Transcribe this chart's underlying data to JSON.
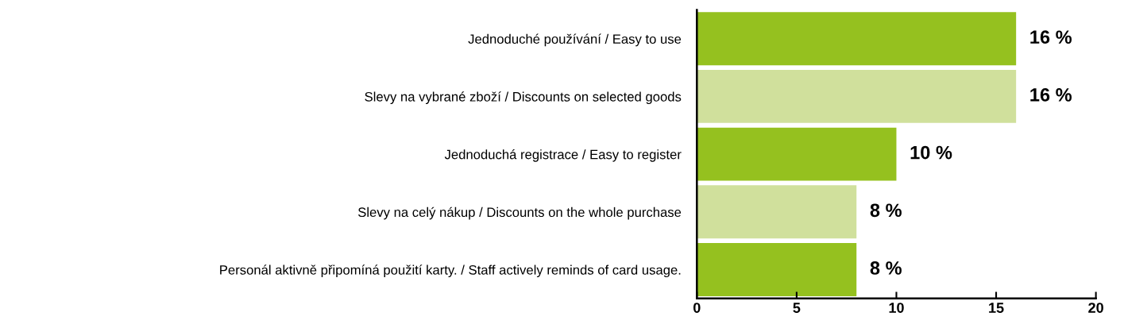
{
  "chart_data": {
    "type": "bar",
    "orientation": "horizontal",
    "categories": [
      "Jednoduché používání / Easy to use",
      "Slevy na vybrané zboží / Discounts on selected goods",
      "Jednoduchá registrace / Easy to register",
      "Slevy na celý nákup / Discounts on the whole purchase",
      "Personál aktivně připomíná použití karty. / Staff actively reminds of card usage."
    ],
    "values": [
      16,
      16,
      10,
      8,
      8
    ],
    "colors": [
      "#95c11f",
      "#d0e09c",
      "#95c11f",
      "#d0e09c",
      "#95c11f"
    ],
    "value_labels": [
      "16 %",
      "16 %",
      "10 %",
      "8 %",
      "8 %"
    ],
    "xlim": [
      0,
      20
    ],
    "xticks": [
      0,
      5,
      10,
      15,
      20
    ],
    "grid": false,
    "legend": false
  }
}
